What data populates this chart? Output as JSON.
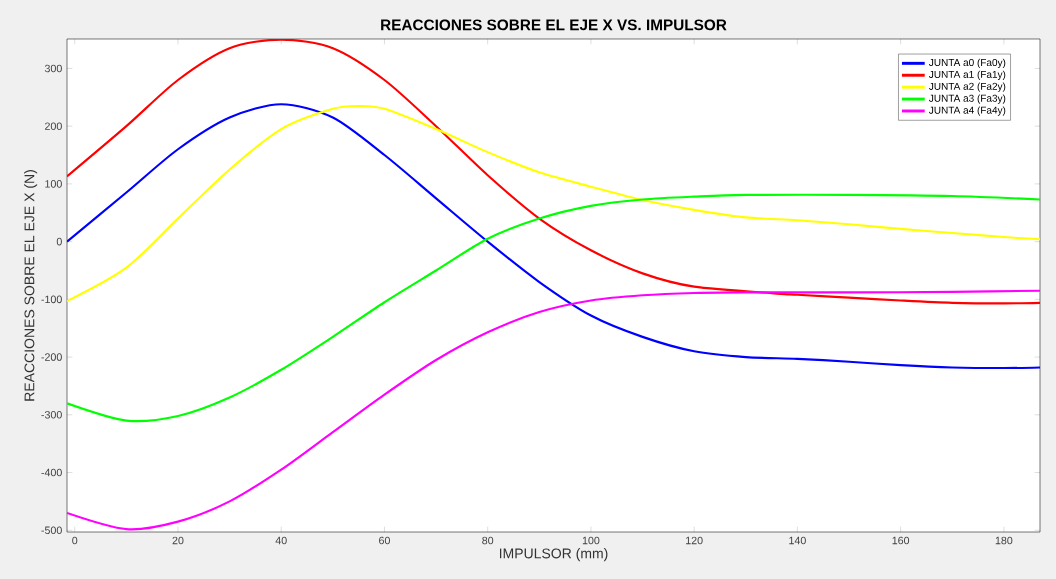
{
  "chart_data": {
    "type": "line",
    "title": "REACCIONES SOBRE EL EJE X VS. IMPULSOR",
    "xlabel": "IMPULSOR (mm)",
    "ylabel": "REACCIONES SOBRE EL EJE X (N)",
    "xlim": [
      -1.5,
      187
    ],
    "ylim": [
      -503,
      351
    ],
    "xticks": [
      0,
      20,
      40,
      60,
      80,
      100,
      120,
      140,
      160,
      180
    ],
    "yticks": [
      -500,
      -400,
      -300,
      -200,
      -100,
      0,
      100,
      200,
      300
    ],
    "legend": "top right",
    "marker": "none",
    "line_style": "solid",
    "series": [
      {
        "name": "JUNTA a0 (Fa0y)",
        "color": "#0000ff",
        "x": [
          -1.5,
          10,
          20,
          30,
          40,
          50,
          60,
          70,
          80,
          90,
          100,
          110,
          120,
          130,
          140,
          150,
          160,
          170,
          180,
          187
        ],
        "values": [
          0,
          85,
          160,
          215,
          238,
          215,
          150,
          75,
          0,
          -70,
          -128,
          -165,
          -190,
          -200,
          -203,
          -208,
          -214,
          -218,
          -219,
          -218
        ]
      },
      {
        "name": "JUNTA a1 (Fa1y)",
        "color": "#ff0000",
        "x": [
          -1.5,
          10,
          20,
          30,
          40,
          50,
          60,
          70,
          80,
          90,
          100,
          110,
          120,
          136,
          140,
          150,
          160,
          170,
          180,
          187
        ],
        "values": [
          113,
          200,
          280,
          335,
          350,
          335,
          280,
          200,
          115,
          40,
          -15,
          -55,
          -78,
          -90,
          -92,
          -97,
          -102,
          -106,
          -107,
          -106
        ]
      },
      {
        "name": "JUNTA a2 (Fa2y)",
        "color": "#ffff00",
        "x": [
          -1.5,
          10,
          20,
          30,
          40,
          50,
          55,
          60,
          70,
          80,
          90,
          100,
          110,
          120,
          130,
          140,
          150,
          160,
          170,
          180,
          187
        ],
        "values": [
          -103,
          -45,
          40,
          125,
          195,
          230,
          235,
          230,
          195,
          155,
          120,
          95,
          72,
          55,
          42,
          37,
          30,
          22,
          15,
          8,
          4
        ]
      },
      {
        "name": "JUNTA a3 (Fa3y)",
        "color": "#00ff00",
        "x": [
          -1.5,
          10,
          20,
          30,
          40,
          50,
          60,
          70,
          80,
          90,
          100,
          110,
          120,
          130,
          150,
          170,
          187
        ],
        "values": [
          -280,
          -310,
          -302,
          -270,
          -222,
          -165,
          -105,
          -50,
          5,
          40,
          62,
          73,
          78,
          81,
          81,
          79,
          73
        ]
      },
      {
        "name": "JUNTA a4 (Fa4y)",
        "color": "#ff00ff",
        "x": [
          -1.5,
          10,
          20,
          30,
          40,
          50,
          60,
          70,
          80,
          90,
          100,
          110,
          120,
          130,
          150,
          170,
          187
        ],
        "values": [
          -470,
          -498,
          -485,
          -450,
          -395,
          -330,
          -265,
          -205,
          -157,
          -122,
          -102,
          -93,
          -89,
          -88,
          -88,
          -87,
          -85
        ]
      }
    ]
  }
}
